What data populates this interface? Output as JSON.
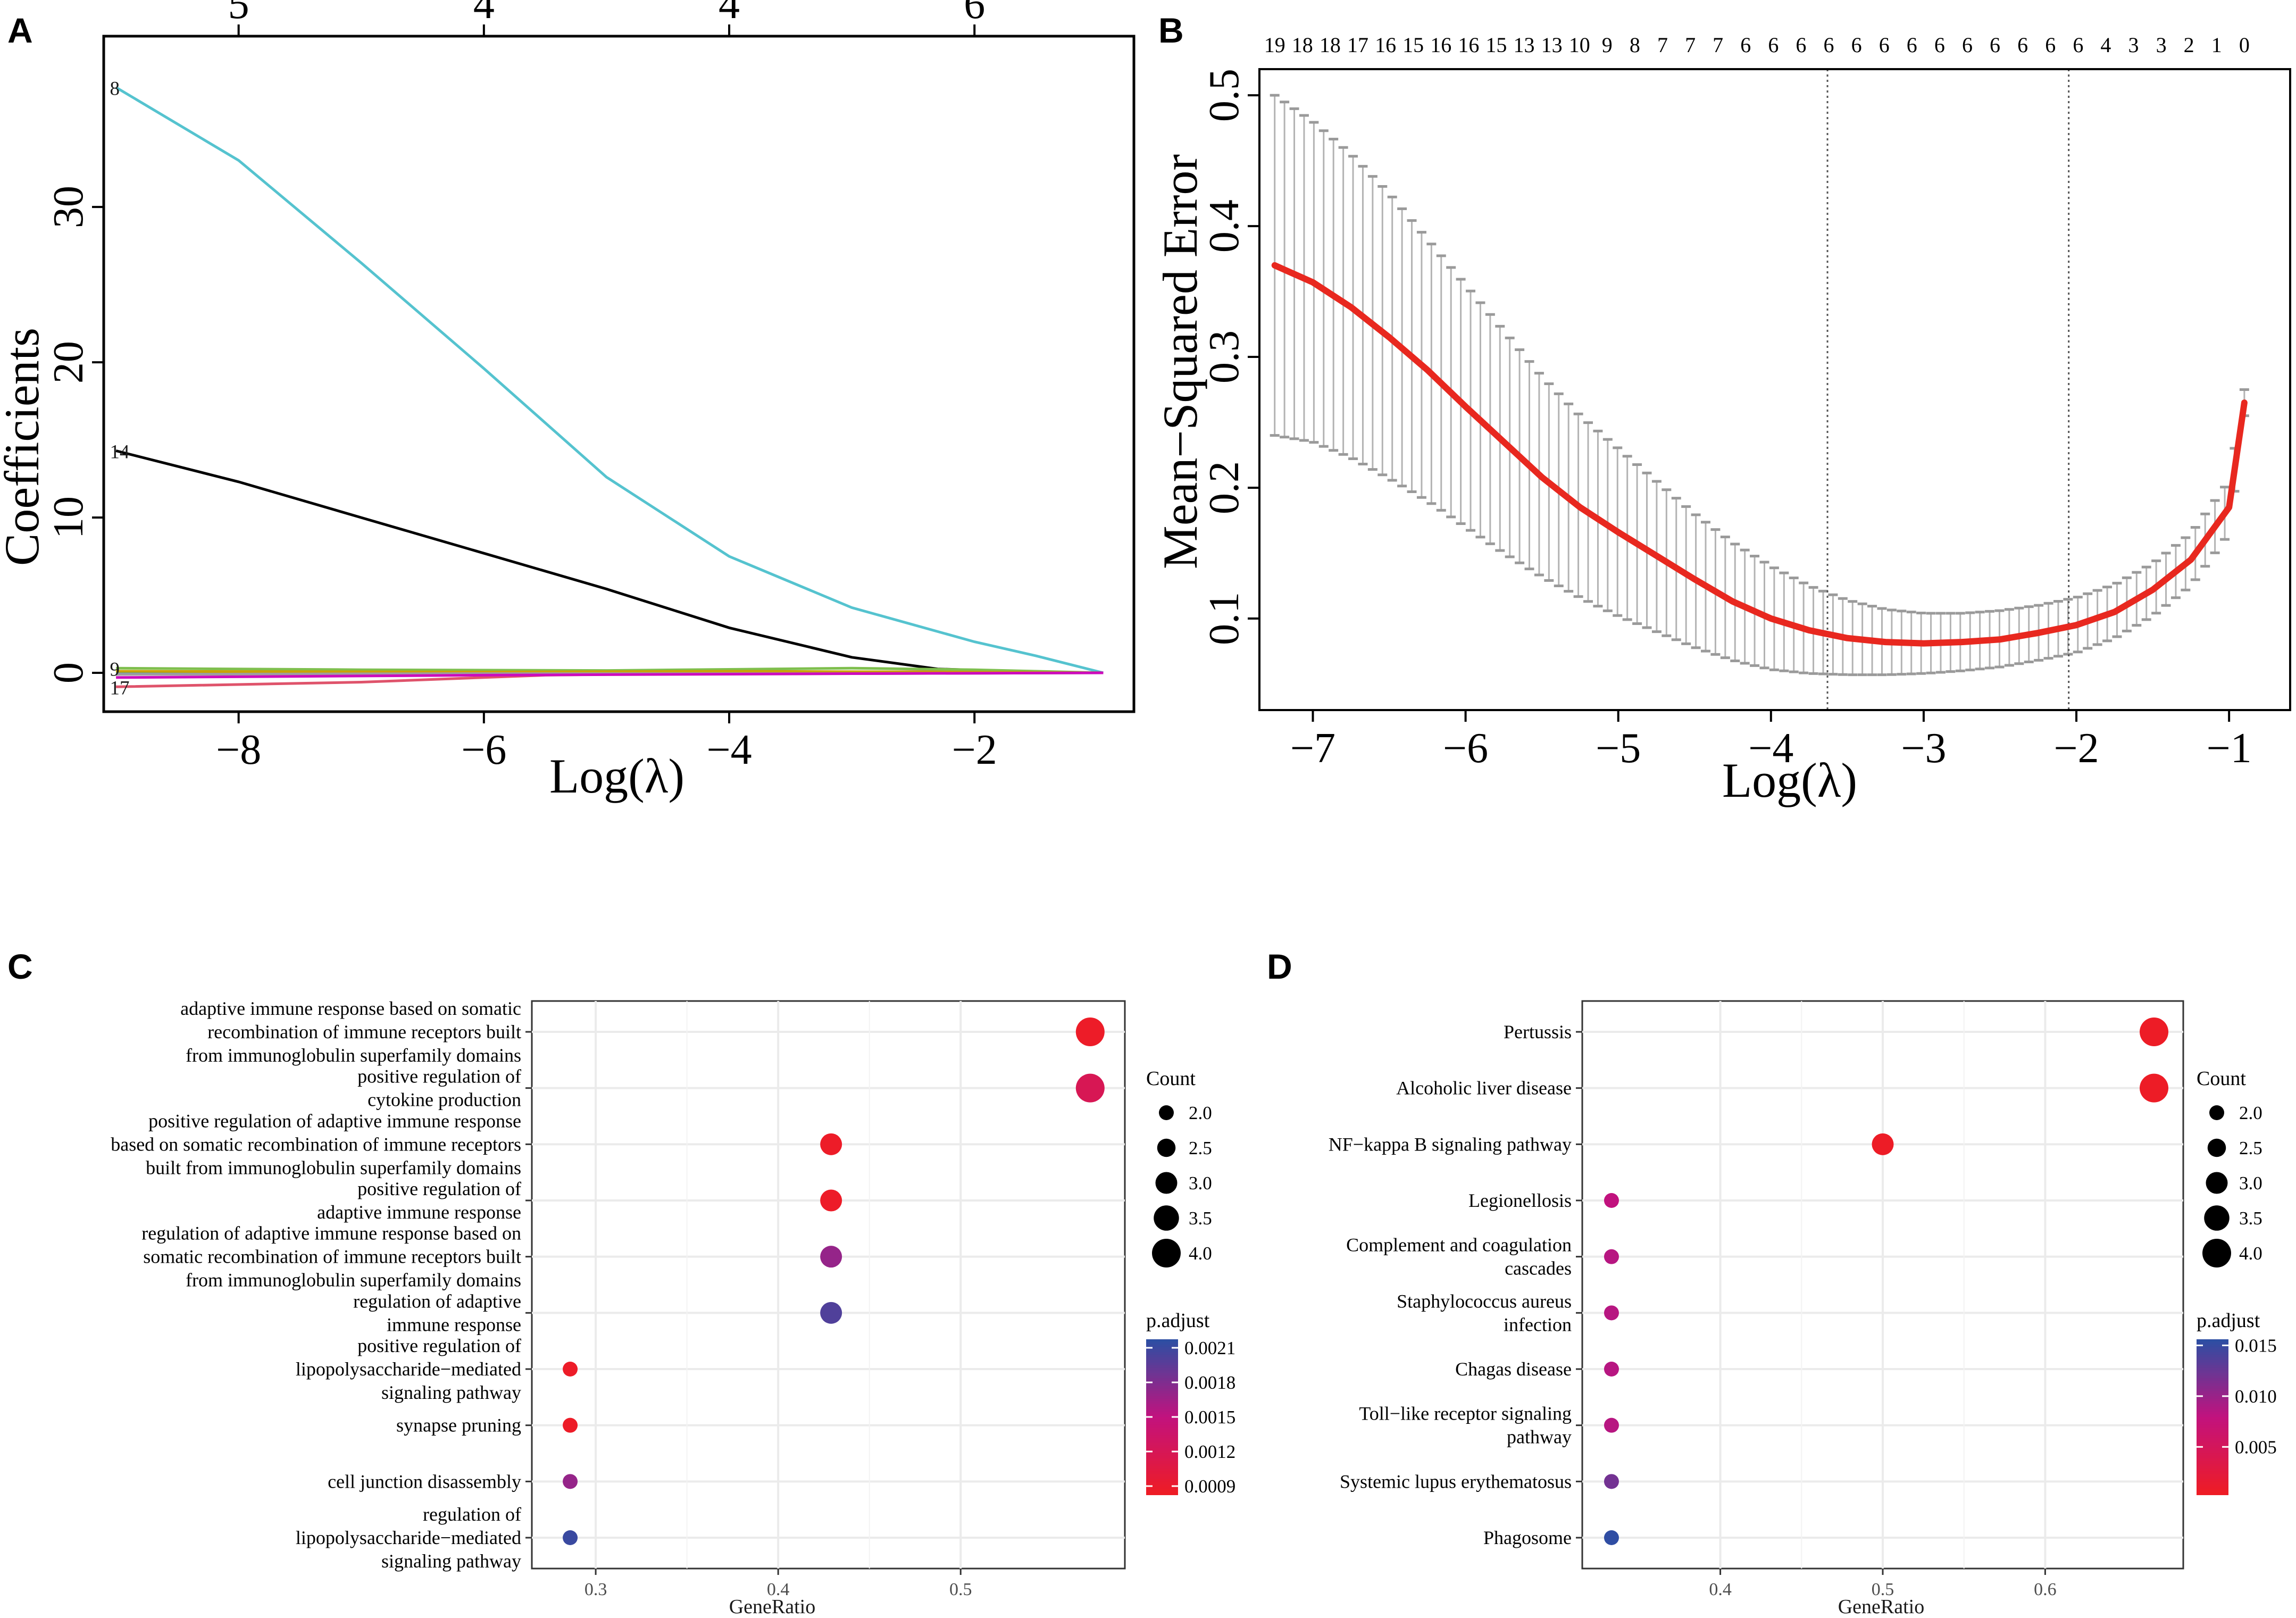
{
  "panels": {
    "a": "A",
    "b": "B",
    "c": "C",
    "d": "D"
  },
  "chart_data": [
    {
      "id": "A",
      "type": "line",
      "title": "",
      "xlabel": "Log(λ)",
      "ylabel": "Coefficients",
      "xlim": [
        -9.1,
        -0.7
      ],
      "ylim": [
        -2.5,
        41
      ],
      "x_ticks": [
        -8,
        -6,
        -4,
        -2
      ],
      "x_tick_labels": [
        "−8",
        "−6",
        "−4",
        "−2"
      ],
      "y_ticks": [
        0,
        10,
        20,
        30
      ],
      "y_tick_labels": [
        "0",
        "10",
        "20",
        "30"
      ],
      "top_ticks": [
        {
          "x": -8,
          "label": "5"
        },
        {
          "x": -6,
          "label": "4"
        },
        {
          "x": -4,
          "label": "4"
        },
        {
          "x": -2,
          "label": "6"
        }
      ],
      "series": [
        {
          "name": "8",
          "color": "#55c3cf",
          "points": [
            [
              -9.0,
              37.7
            ],
            [
              -8.0,
              33.0
            ],
            [
              -7.0,
              26.4
            ],
            [
              -6.0,
              19.6
            ],
            [
              -5.0,
              12.6
            ],
            [
              -4.0,
              7.5
            ],
            [
              -3.0,
              4.2
            ],
            [
              -2.0,
              2.0
            ],
            [
              -1.5,
              1.1
            ],
            [
              -1.2,
              0.5
            ],
            [
              -0.95,
              0.0
            ]
          ]
        },
        {
          "name": "14",
          "color": "#000000",
          "points": [
            [
              -9.0,
              14.3
            ],
            [
              -8.0,
              12.3
            ],
            [
              -7.0,
              10.0
            ],
            [
              -6.0,
              7.7
            ],
            [
              -5.0,
              5.4
            ],
            [
              -4.0,
              2.9
            ],
            [
              -3.0,
              1.0
            ],
            [
              -2.3,
              0.25
            ],
            [
              -1.5,
              0.05
            ],
            [
              -0.95,
              0.0
            ]
          ]
        },
        {
          "name": "17",
          "color": "#df536b",
          "points": [
            [
              -9.0,
              -0.9
            ],
            [
              -7.0,
              -0.6
            ],
            [
              -5.5,
              -0.15
            ],
            [
              -4.0,
              0.0
            ],
            [
              -2.0,
              0.1
            ],
            [
              -0.95,
              0.0
            ]
          ]
        },
        {
          "name": "green",
          "color": "#7fbf4e",
          "points": [
            [
              -9.0,
              0.3
            ],
            [
              -7.0,
              0.2
            ],
            [
              -5.0,
              0.15
            ],
            [
              -3.0,
              0.3
            ],
            [
              -2.0,
              0.2
            ],
            [
              -0.95,
              0.0
            ]
          ]
        },
        {
          "name": "blue",
          "color": "#2297e6",
          "points": [
            [
              -9.0,
              0.05
            ],
            [
              -6.0,
              0.0
            ],
            [
              -4.0,
              0.0
            ],
            [
              -2.0,
              0.0
            ],
            [
              -0.95,
              0.0
            ]
          ]
        },
        {
          "name": "gold",
          "color": "#c9a300",
          "points": [
            [
              -9.0,
              0.1
            ],
            [
              -6.0,
              0.05
            ],
            [
              -4.0,
              0.1
            ],
            [
              -2.0,
              0.05
            ],
            [
              -0.95,
              0.0
            ]
          ]
        },
        {
          "name": "gray",
          "color": "#9e9e9e",
          "points": [
            [
              -9.0,
              -0.1
            ],
            [
              -6.0,
              -0.05
            ],
            [
              -3.0,
              -0.05
            ],
            [
              -0.95,
              0.0
            ]
          ]
        },
        {
          "name": "magenta",
          "color": "#cd0bbc",
          "points": [
            [
              -9.0,
              -0.3
            ],
            [
              -6.0,
              -0.15
            ],
            [
              -3.0,
              -0.05
            ],
            [
              -0.95,
              0.0
            ]
          ]
        }
      ],
      "line_labels": [
        {
          "text": "8",
          "x": -9.05,
          "y": 37.7
        },
        {
          "text": "14",
          "x": -9.05,
          "y": 14.3
        },
        {
          "text": "9",
          "x": -9.05,
          "y": 0.3
        },
        {
          "text": "17",
          "x": -9.05,
          "y": -0.9
        }
      ]
    },
    {
      "id": "B",
      "type": "line",
      "title": "",
      "xlabel": "Log(λ)",
      "ylabel": "Mean−Squared Error",
      "xlim": [
        -7.35,
        -0.6
      ],
      "ylim": [
        0.03,
        0.52
      ],
      "x_ticks": [
        -7,
        -6,
        -5,
        -4,
        -3,
        -2,
        -1
      ],
      "x_tick_labels": [
        "−7",
        "−6",
        "−5",
        "−4",
        "−3",
        "−2",
        "−1"
      ],
      "y_ticks": [
        0.1,
        0.2,
        0.3,
        0.4,
        0.5
      ],
      "y_tick_labels": [
        "0.1",
        "0.2",
        "0.3",
        "0.4",
        "0.5"
      ],
      "top_labels": [
        "19",
        "18",
        "18",
        "17",
        "16",
        "15",
        "16",
        "16",
        "15",
        "13",
        "13",
        "10",
        "9",
        "8",
        "7",
        "7",
        "7",
        "6",
        "6",
        "6",
        "6",
        "6",
        "6",
        "6",
        "6",
        "6",
        "6",
        "6",
        "6",
        "6",
        "4",
        "3",
        "3",
        "2",
        "1",
        "0"
      ],
      "top_range": [
        -7.25,
        -0.9
      ],
      "vlines": [
        -3.63,
        -2.05
      ],
      "mse": [
        [
          -7.25,
          0.37
        ],
        [
          -7.0,
          0.357
        ],
        [
          -6.75,
          0.338
        ],
        [
          -6.5,
          0.315
        ],
        [
          -6.25,
          0.29
        ],
        [
          -6.0,
          0.262
        ],
        [
          -5.75,
          0.235
        ],
        [
          -5.5,
          0.208
        ],
        [
          -5.25,
          0.185
        ],
        [
          -5.0,
          0.166
        ],
        [
          -4.75,
          0.148
        ],
        [
          -4.5,
          0.13
        ],
        [
          -4.25,
          0.113
        ],
        [
          -4.0,
          0.1
        ],
        [
          -3.75,
          0.091
        ],
        [
          -3.5,
          0.085
        ],
        [
          -3.25,
          0.082
        ],
        [
          -3.0,
          0.081
        ],
        [
          -2.75,
          0.082
        ],
        [
          -2.5,
          0.084
        ],
        [
          -2.25,
          0.089
        ],
        [
          -2.0,
          0.095
        ],
        [
          -1.75,
          0.105
        ],
        [
          -1.5,
          0.122
        ],
        [
          -1.25,
          0.145
        ],
        [
          -1.0,
          0.185
        ],
        [
          -0.9,
          0.265
        ]
      ],
      "mse_lower": [
        [
          -7.25,
          0.24
        ],
        [
          -7.0,
          0.235
        ],
        [
          -6.75,
          0.223
        ],
        [
          -6.5,
          0.207
        ],
        [
          -6.25,
          0.19
        ],
        [
          -6.0,
          0.17
        ],
        [
          -5.75,
          0.15
        ],
        [
          -5.5,
          0.132
        ],
        [
          -5.25,
          0.116
        ],
        [
          -5.0,
          0.102
        ],
        [
          -4.75,
          0.09
        ],
        [
          -4.5,
          0.078
        ],
        [
          -4.25,
          0.068
        ],
        [
          -4.0,
          0.061
        ],
        [
          -3.75,
          0.058
        ],
        [
          -3.5,
          0.057
        ],
        [
          -3.25,
          0.057
        ],
        [
          -3.0,
          0.058
        ],
        [
          -2.75,
          0.06
        ],
        [
          -2.5,
          0.063
        ],
        [
          -2.25,
          0.068
        ],
        [
          -2.0,
          0.074
        ],
        [
          -1.75,
          0.085
        ],
        [
          -1.5,
          0.102
        ],
        [
          -1.25,
          0.125
        ],
        [
          -1.0,
          0.165
        ],
        [
          -0.9,
          0.255
        ]
      ],
      "mse_upper": [
        [
          -7.25,
          0.5
        ],
        [
          -7.0,
          0.48
        ],
        [
          -6.75,
          0.455
        ],
        [
          -6.5,
          0.425
        ],
        [
          -6.25,
          0.39
        ],
        [
          -6.0,
          0.355
        ],
        [
          -5.75,
          0.32
        ],
        [
          -5.5,
          0.285
        ],
        [
          -5.25,
          0.255
        ],
        [
          -5.0,
          0.23
        ],
        [
          -4.75,
          0.205
        ],
        [
          -4.5,
          0.18
        ],
        [
          -4.25,
          0.158
        ],
        [
          -4.0,
          0.14
        ],
        [
          -3.75,
          0.125
        ],
        [
          -3.5,
          0.114
        ],
        [
          -3.25,
          0.107
        ],
        [
          -3.0,
          0.104
        ],
        [
          -2.75,
          0.104
        ],
        [
          -2.5,
          0.106
        ],
        [
          -2.25,
          0.11
        ],
        [
          -2.0,
          0.116
        ],
        [
          -1.75,
          0.126
        ],
        [
          -1.5,
          0.142
        ],
        [
          -1.25,
          0.165
        ],
        [
          -1.0,
          0.205
        ],
        [
          -0.9,
          0.275
        ]
      ]
    },
    {
      "id": "C",
      "type": "scatter",
      "xlabel": "GeneRatio",
      "xlim": [
        0.265,
        0.59
      ],
      "x_ticks": [
        0.3,
        0.4,
        0.5
      ],
      "x_tick_labels": [
        "0.3",
        "0.4",
        "0.5"
      ],
      "categories": [
        [
          "adaptive immune response based on somatic",
          "recombination of immune receptors built",
          "from immunoglobulin superfamily domains"
        ],
        [
          "positive regulation of",
          "cytokine production"
        ],
        [
          "positive regulation of adaptive immune response",
          "based on somatic recombination of immune receptors",
          "built from immunoglobulin superfamily domains"
        ],
        [
          "positive regulation of",
          "adaptive immune response"
        ],
        [
          "regulation of adaptive immune response based on",
          "somatic recombination of immune receptors built",
          "from immunoglobulin superfamily domains"
        ],
        [
          "regulation of adaptive",
          "immune response"
        ],
        [
          "positive regulation of",
          "lipopolysaccharide−mediated",
          "signaling pathway"
        ],
        [
          "synapse pruning"
        ],
        [
          "cell junction disassembly"
        ],
        [
          "regulation of",
          "lipopolysaccharide−mediated",
          "signaling pathway"
        ]
      ],
      "gene_ratio": [
        0.571,
        0.571,
        0.429,
        0.429,
        0.429,
        0.429,
        0.286,
        0.286,
        0.286,
        0.286
      ],
      "count": [
        4,
        4,
        3,
        3,
        3,
        3,
        2,
        2,
        2,
        2
      ],
      "p_adjust": [
        0.00088,
        0.0012,
        0.00088,
        0.00088,
        0.0017,
        0.002,
        0.00088,
        0.00088,
        0.0017,
        0.0021
      ],
      "legend_count_title": "Count",
      "legend_count_values": [
        "2.0",
        "2.5",
        "3.0",
        "3.5",
        "4.0"
      ],
      "legend_p_title": "p.adjust",
      "legend_p_labels": [
        "0.0021",
        "0.0018",
        "0.0015",
        "0.0012",
        "0.0009"
      ],
      "p_range": [
        0.00086,
        0.00215
      ]
    },
    {
      "id": "D",
      "type": "scatter",
      "xlabel": "GeneRatio",
      "xlim": [
        0.315,
        0.685
      ],
      "x_ticks": [
        0.4,
        0.5,
        0.6
      ],
      "x_tick_labels": [
        "0.4",
        "0.5",
        "0.6"
      ],
      "categories": [
        [
          "Pertussis"
        ],
        [
          "Alcoholic liver disease"
        ],
        [
          "NF−kappa B signaling pathway"
        ],
        [
          "Legionellosis"
        ],
        [
          "Complement and coagulation",
          "cascades"
        ],
        [
          "Staphylococcus aureus",
          "infection"
        ],
        [
          "Chagas disease"
        ],
        [
          "Toll−like receptor signaling",
          "pathway"
        ],
        [
          "Systemic lupus erythematosus"
        ],
        [
          "Phagosome"
        ]
      ],
      "gene_ratio": [
        0.667,
        0.667,
        0.5,
        0.333,
        0.333,
        0.333,
        0.333,
        0.333,
        0.333,
        0.333
      ],
      "count": [
        4,
        4,
        3,
        2,
        2,
        2,
        2,
        2,
        2,
        2
      ],
      "p_adjust": [
        0.0004,
        0.0004,
        0.0004,
        0.008,
        0.0085,
        0.0085,
        0.0085,
        0.0085,
        0.012,
        0.0155
      ],
      "legend_count_title": "Count",
      "legend_count_values": [
        "2.0",
        "2.5",
        "3.0",
        "3.5",
        "4.0"
      ],
      "legend_p_title": "p.adjust",
      "legend_p_labels": [
        "0.015",
        "0.010",
        "0.005"
      ],
      "legend_p_values": [
        0.015,
        0.01,
        0.005
      ],
      "p_range": [
        0.0003,
        0.0156
      ]
    }
  ]
}
